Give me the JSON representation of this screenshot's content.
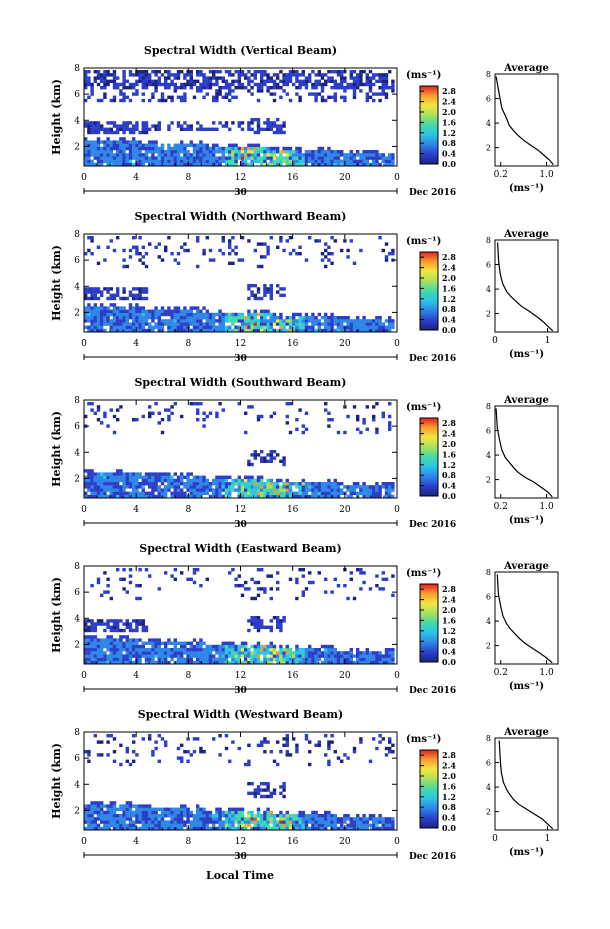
{
  "figure": {
    "xlabel_bottom": "Local Time",
    "date_label": "Dec 2016",
    "day_label": "30",
    "height_label": "Height (km)",
    "units_label": "(ms⁻¹)",
    "average_title": "Average"
  },
  "chart_data": [
    {
      "type": "heatmap",
      "title": "Spectral Width (Vertical Beam)",
      "ylabel": "Height (km)",
      "x_ticks": [
        "0",
        "4",
        "8",
        "12",
        "16",
        "20",
        "0"
      ],
      "y_ticks": [
        "2",
        "4",
        "6",
        "8"
      ],
      "xlim": [
        0,
        24
      ],
      "ylim": [
        0.5,
        8
      ],
      "colorbar": {
        "ticks": [
          "0.0",
          "0.4",
          "0.8",
          "1.2",
          "1.6",
          "2.0",
          "2.4",
          "2.8"
        ],
        "range": [
          0,
          3.0
        ]
      },
      "profile": {
        "title": "Average",
        "xlabel": "(ms⁻¹)",
        "x_ticks": [
          "0.2",
          "1.0"
        ],
        "y_ticks": [
          "2",
          "4",
          "6",
          "8"
        ],
        "xlim": [
          0.1,
          1.2
        ],
        "ylim": [
          0.5,
          8
        ],
        "x": [
          1.12,
          1.05,
          0.95,
          0.85,
          0.72,
          0.6,
          0.5,
          0.42,
          0.35,
          0.3,
          0.22,
          0.18,
          0.12
        ],
        "y": [
          0.6,
          1.0,
          1.4,
          1.8,
          2.2,
          2.6,
          3.0,
          3.4,
          3.8,
          4.4,
          5.2,
          6.2,
          7.8
        ]
      }
    },
    {
      "type": "heatmap",
      "title": "Spectral Width (Northward Beam)",
      "ylabel": "Height (km)",
      "x_ticks": [
        "0",
        "4",
        "8",
        "12",
        "16",
        "20",
        "0"
      ],
      "y_ticks": [
        "2",
        "4",
        "6",
        "8"
      ],
      "xlim": [
        0,
        24
      ],
      "ylim": [
        0.5,
        8
      ],
      "colorbar": {
        "ticks": [
          "0.0",
          "0.4",
          "0.8",
          "1.2",
          "1.6",
          "2.0",
          "2.4",
          "2.8"
        ],
        "range": [
          0,
          3.0
        ]
      },
      "profile": {
        "title": "Average",
        "xlabel": "(ms⁻¹)",
        "x_ticks": [
          "0",
          "1"
        ],
        "y_ticks": [
          "2",
          "4",
          "6",
          "8"
        ],
        "xlim": [
          0,
          1.2
        ],
        "ylim": [
          0.5,
          8
        ],
        "x": [
          1.1,
          1.0,
          0.9,
          0.78,
          0.65,
          0.5,
          0.4,
          0.3,
          0.22,
          0.15,
          0.1,
          0.07,
          0.05
        ],
        "y": [
          0.6,
          1.0,
          1.4,
          1.8,
          2.2,
          2.6,
          3.0,
          3.4,
          3.8,
          4.4,
          5.2,
          6.2,
          7.8
        ]
      }
    },
    {
      "type": "heatmap",
      "title": "Spectral Width (Southward Beam)",
      "ylabel": "Height (km)",
      "x_ticks": [
        "0",
        "4",
        "8",
        "12",
        "16",
        "20",
        "0"
      ],
      "y_ticks": [
        "2",
        "4",
        "6",
        "8"
      ],
      "xlim": [
        0,
        24
      ],
      "ylim": [
        0.5,
        8
      ],
      "colorbar": {
        "ticks": [
          "0.0",
          "0.4",
          "0.8",
          "1.2",
          "1.6",
          "2.0",
          "2.4",
          "2.8"
        ],
        "range": [
          0,
          3.0
        ]
      },
      "profile": {
        "title": "Average",
        "xlabel": "(ms⁻¹)",
        "x_ticks": [
          "0.2",
          "1.0"
        ],
        "y_ticks": [
          "2",
          "4",
          "6",
          "8"
        ],
        "xlim": [
          0.1,
          1.2
        ],
        "ylim": [
          0.5,
          8
        ],
        "x": [
          1.1,
          1.02,
          0.9,
          0.78,
          0.62,
          0.5,
          0.42,
          0.35,
          0.28,
          0.22,
          0.18,
          0.14,
          0.12
        ],
        "y": [
          0.6,
          1.0,
          1.4,
          1.8,
          2.2,
          2.6,
          3.0,
          3.4,
          3.8,
          4.4,
          5.2,
          6.2,
          7.8
        ]
      }
    },
    {
      "type": "heatmap",
      "title": "Spectral Width (Eastward Beam)",
      "ylabel": "Height (km)",
      "x_ticks": [
        "0",
        "4",
        "8",
        "12",
        "16",
        "20",
        "0"
      ],
      "y_ticks": [
        "2",
        "4",
        "6",
        "8"
      ],
      "xlim": [
        0,
        24
      ],
      "ylim": [
        0.5,
        8
      ],
      "colorbar": {
        "ticks": [
          "0.0",
          "0.4",
          "0.8",
          "1.2",
          "1.6",
          "2.0",
          "2.4",
          "2.8"
        ],
        "range": [
          0,
          3.0
        ]
      },
      "profile": {
        "title": "Average",
        "xlabel": "(ms⁻¹)",
        "x_ticks": [
          "0.2",
          "1.0"
        ],
        "y_ticks": [
          "2",
          "4",
          "6",
          "8"
        ],
        "xlim": [
          0.1,
          1.2
        ],
        "ylim": [
          0.5,
          8
        ],
        "x": [
          1.1,
          1.0,
          0.88,
          0.75,
          0.62,
          0.52,
          0.44,
          0.36,
          0.3,
          0.24,
          0.2,
          0.16,
          0.14
        ],
        "y": [
          0.6,
          1.0,
          1.4,
          1.8,
          2.2,
          2.6,
          3.0,
          3.4,
          3.8,
          4.4,
          5.2,
          6.2,
          7.8
        ]
      }
    },
    {
      "type": "heatmap",
      "title": "Spectral Width (Westward Beam)",
      "ylabel": "Height (km)",
      "x_ticks": [
        "0",
        "4",
        "8",
        "12",
        "16",
        "20",
        "0"
      ],
      "y_ticks": [
        "2",
        "4",
        "6",
        "8"
      ],
      "xlim": [
        0,
        24
      ],
      "ylim": [
        0.5,
        8
      ],
      "colorbar": {
        "ticks": [
          "0.0",
          "0.4",
          "0.8",
          "1.2",
          "1.6",
          "2.0",
          "2.4",
          "2.8"
        ],
        "range": [
          0,
          3.0
        ]
      },
      "profile": {
        "title": "Average",
        "xlabel": "(ms⁻¹)",
        "x_ticks": [
          "0",
          "1"
        ],
        "y_ticks": [
          "2",
          "4",
          "6",
          "8"
        ],
        "xlim": [
          0,
          1.2
        ],
        "ylim": [
          0.5,
          8
        ],
        "x": [
          1.1,
          1.0,
          0.9,
          0.75,
          0.6,
          0.45,
          0.35,
          0.28,
          0.22,
          0.16,
          0.12,
          0.1,
          0.08
        ],
        "y": [
          0.6,
          1.0,
          1.4,
          1.8,
          2.2,
          2.6,
          3.0,
          3.4,
          3.8,
          4.4,
          5.2,
          6.2,
          7.8
        ]
      }
    }
  ]
}
